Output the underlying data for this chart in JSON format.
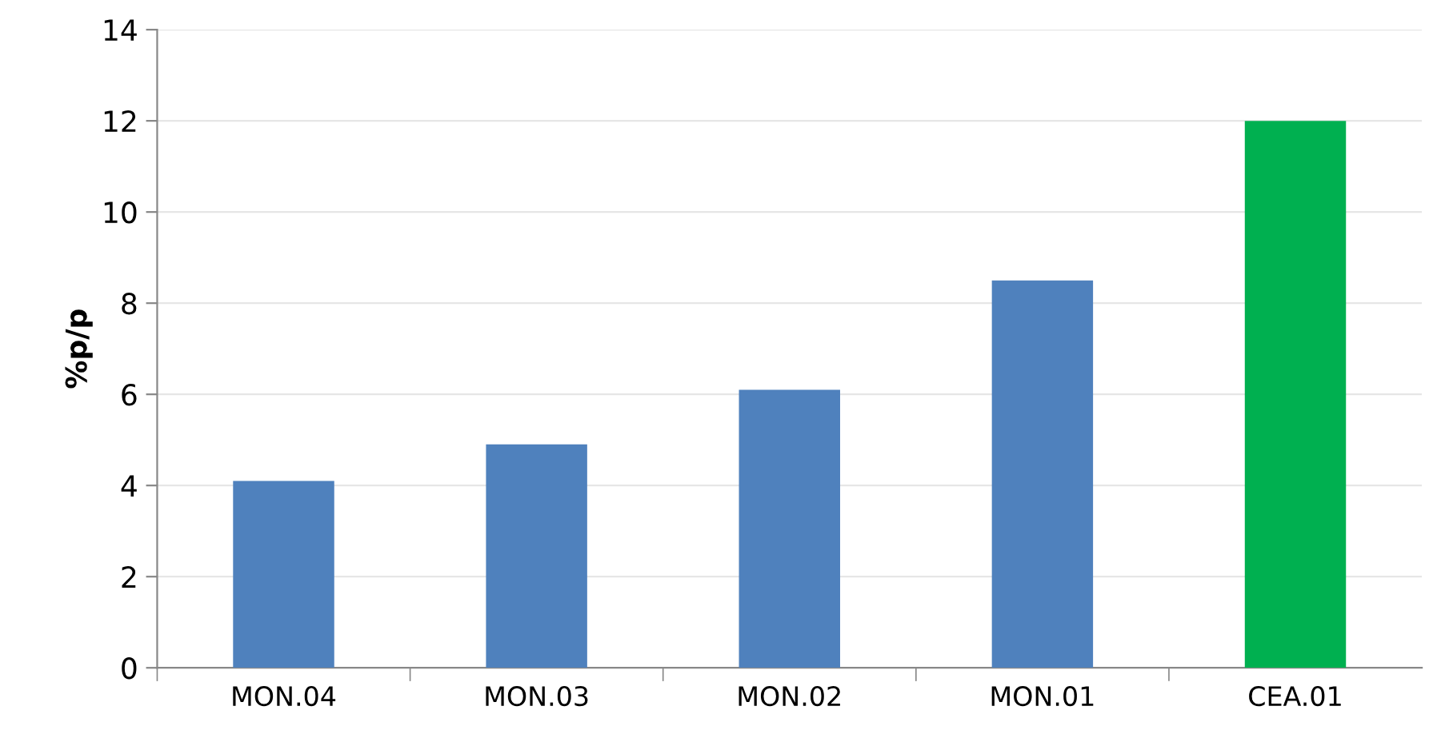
{
  "chart_data": {
    "type": "bar",
    "ylabel": "%p/p",
    "categories": [
      "MON.04",
      "MON.03",
      "MON.02",
      "MON.01",
      "CEA.01"
    ],
    "values": [
      4.1,
      4.9,
      6.1,
      8.5,
      12.0
    ],
    "colors": [
      "#4f81bd",
      "#4f81bd",
      "#4f81bd",
      "#4f81bd",
      "#00b050"
    ],
    "ylim": [
      0,
      14
    ],
    "yticks": [
      0,
      2,
      4,
      6,
      8,
      10,
      12,
      14
    ],
    "grid": "y",
    "legend": false
  }
}
